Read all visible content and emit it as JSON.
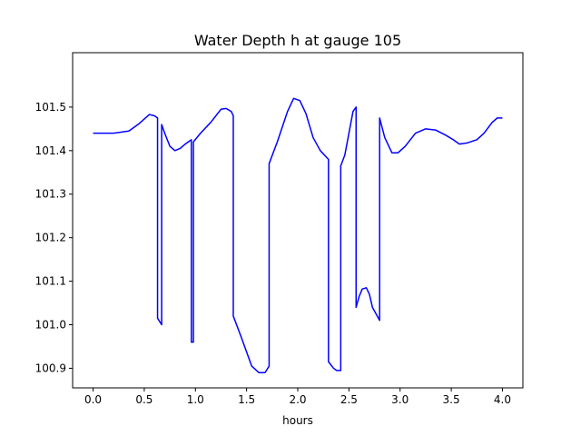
{
  "chart_data": {
    "type": "line",
    "title": "Water Depth h at gauge 105",
    "xlabel": "hours",
    "ylabel": "",
    "xlim": [
      -0.2,
      4.2
    ],
    "ylim": [
      100.855,
      101.625
    ],
    "x_ticks": [
      0.0,
      0.5,
      1.0,
      1.5,
      2.0,
      2.5,
      3.0,
      3.5,
      4.0
    ],
    "x_tick_labels": [
      "0.0",
      "0.5",
      "1.0",
      "1.5",
      "2.0",
      "2.5",
      "3.0",
      "3.5",
      "4.0"
    ],
    "y_ticks": [
      100.9,
      101.0,
      101.1,
      101.2,
      101.3,
      101.4,
      101.5
    ],
    "y_tick_labels": [
      "100.9",
      "101.0",
      "101.1",
      "101.2",
      "101.3",
      "101.4",
      "101.5"
    ],
    "grid": false,
    "legend": "none",
    "series": [
      {
        "color": "#0000ff",
        "x": [
          0.0,
          0.2,
          0.35,
          0.45,
          0.55,
          0.6,
          0.63,
          0.63,
          0.67,
          0.67,
          0.7,
          0.75,
          0.8,
          0.85,
          0.9,
          0.96,
          0.96,
          0.98,
          0.98,
          1.05,
          1.15,
          1.25,
          1.3,
          1.35,
          1.37,
          1.37,
          1.45,
          1.55,
          1.62,
          1.68,
          1.72,
          1.72,
          1.8,
          1.9,
          1.96,
          2.02,
          2.08,
          2.15,
          2.22,
          2.3,
          2.3,
          2.35,
          2.38,
          2.42,
          2.42,
          2.46,
          2.5,
          2.54,
          2.57,
          2.57,
          2.6,
          2.63,
          2.67,
          2.7,
          2.73,
          2.8,
          2.8,
          2.85,
          2.92,
          2.98,
          3.05,
          3.15,
          3.25,
          3.35,
          3.45,
          3.52,
          3.58,
          3.66,
          3.75,
          3.82,
          3.9,
          3.95,
          4.0
        ],
        "values": [
          101.44,
          101.44,
          101.445,
          101.462,
          101.483,
          101.48,
          101.475,
          101.015,
          101.0,
          101.46,
          101.44,
          101.41,
          101.4,
          101.405,
          101.415,
          101.425,
          100.96,
          100.96,
          101.42,
          101.44,
          101.465,
          101.495,
          101.497,
          101.49,
          101.48,
          101.02,
          100.97,
          100.905,
          100.89,
          100.89,
          100.905,
          101.37,
          101.42,
          101.49,
          101.52,
          101.515,
          101.485,
          101.43,
          101.4,
          101.38,
          100.915,
          100.9,
          100.895,
          100.895,
          101.365,
          101.39,
          101.44,
          101.49,
          101.5,
          101.04,
          101.065,
          101.082,
          101.085,
          101.07,
          101.04,
          101.01,
          101.475,
          101.43,
          101.395,
          101.395,
          101.41,
          101.44,
          101.45,
          101.447,
          101.435,
          101.425,
          101.415,
          101.418,
          101.425,
          101.44,
          101.465,
          101.475,
          101.475
        ]
      }
    ]
  }
}
